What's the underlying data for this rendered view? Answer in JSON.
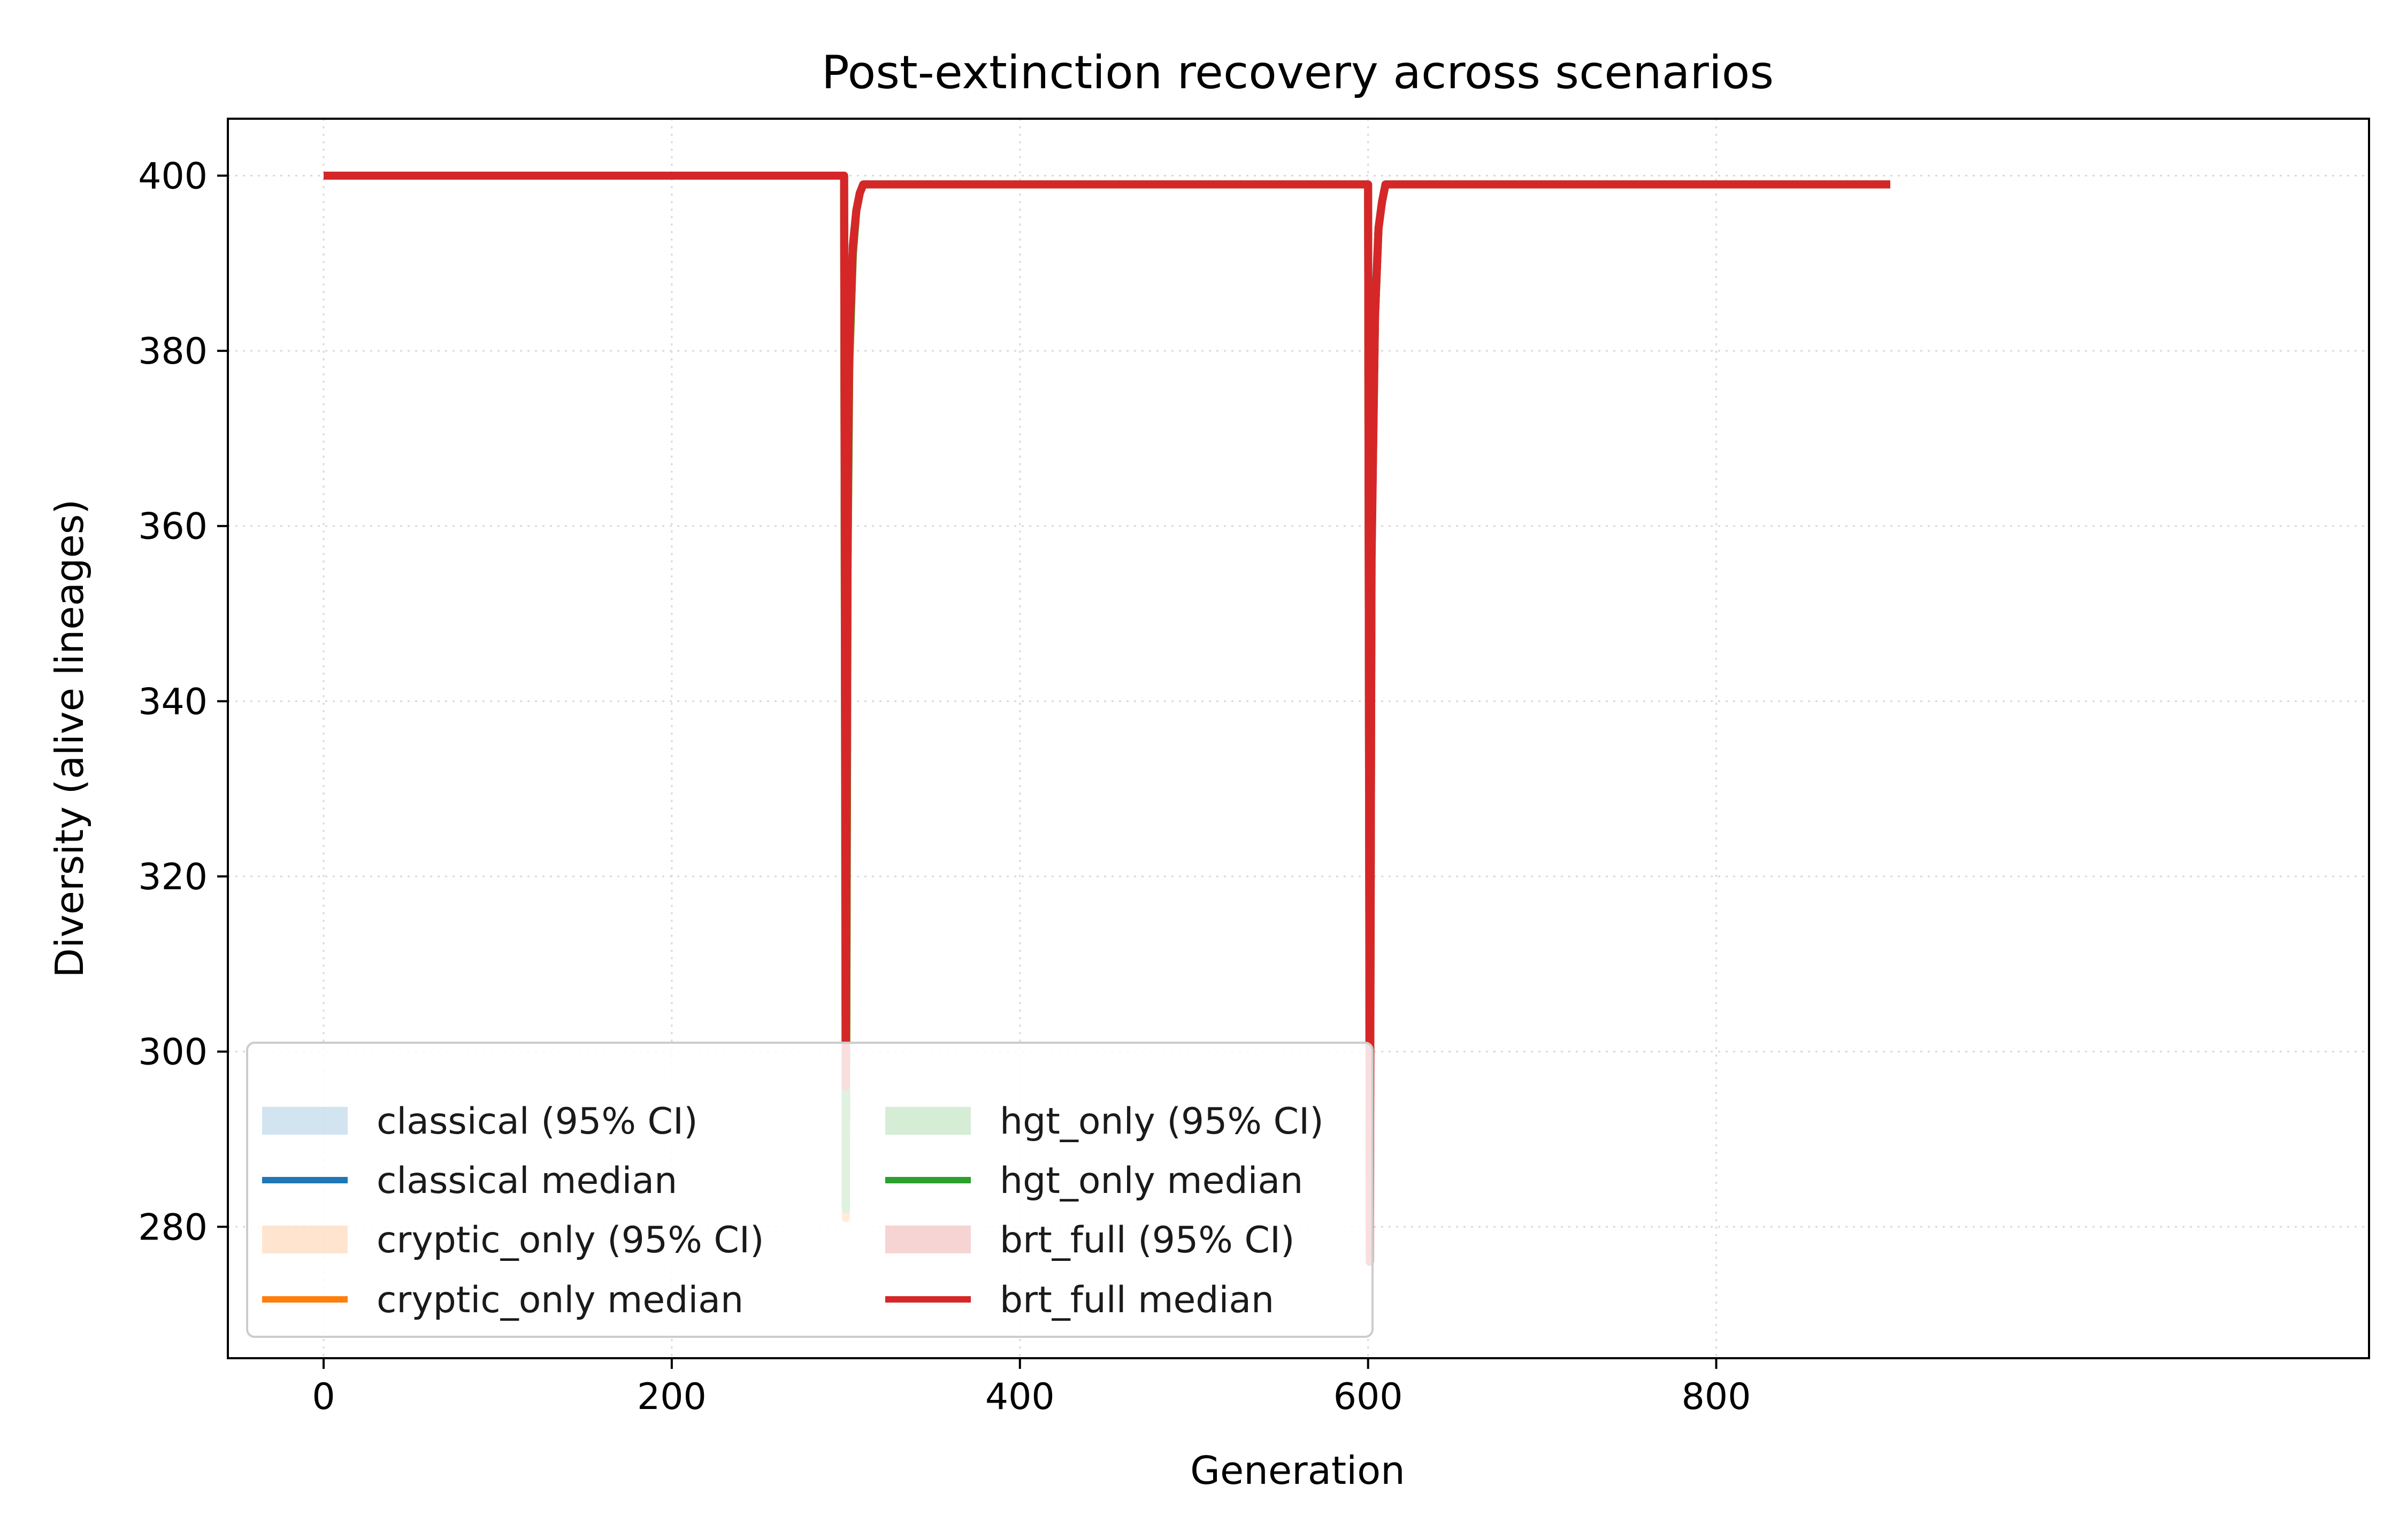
{
  "chart_data": {
    "type": "line",
    "title": "Post-extinction recovery across scenarios",
    "xlabel": "Generation",
    "ylabel": "Diversity (alive lineages)",
    "xlim": [
      -55,
      1175
    ],
    "ylim": [
      265,
      406.5
    ],
    "xticks": [
      0,
      200,
      400,
      600,
      800
    ],
    "yticks": [
      280,
      300,
      320,
      340,
      360,
      380,
      400
    ],
    "grid": true,
    "legend": {
      "placement": "lower-left",
      "columns": 2
    },
    "legend_entries": [
      {
        "label": "classical (95% CI)",
        "kind": "band",
        "color": "#1f77b4"
      },
      {
        "label": "classical median",
        "kind": "line",
        "color": "#1f77b4"
      },
      {
        "label": "cryptic_only (95% CI)",
        "kind": "band",
        "color": "#ff7f0e"
      },
      {
        "label": "cryptic_only median",
        "kind": "line",
        "color": "#ff7f0e"
      },
      {
        "label": "hgt_only (95% CI)",
        "kind": "band",
        "color": "#2ca02c"
      },
      {
        "label": "hgt_only median",
        "kind": "line",
        "color": "#2ca02c"
      },
      {
        "label": "brt_full (95% CI)",
        "kind": "band",
        "color": "#d62728"
      },
      {
        "label": "brt_full median",
        "kind": "line",
        "color": "#d62728"
      }
    ],
    "series": [
      {
        "name": "classical median",
        "color": "#1f77b4",
        "x": [
          0,
          299,
          300,
          301,
          302,
          304,
          306,
          308,
          310,
          600,
          601,
          602,
          604,
          606,
          608,
          610,
          900
        ],
        "y": [
          400,
          400,
          293,
          360,
          380,
          392,
          396,
          398,
          399,
          399,
          300,
          360,
          385,
          394,
          397,
          399,
          399
        ]
      },
      {
        "name": "cryptic_only median",
        "color": "#ff7f0e",
        "x": [
          0,
          299,
          300,
          301,
          302,
          304,
          306,
          308,
          310,
          600,
          601,
          602,
          604,
          606,
          608,
          610,
          900
        ],
        "y": [
          400,
          400,
          281,
          355,
          378,
          391,
          396,
          398,
          399,
          399,
          283,
          358,
          384,
          394,
          397,
          399,
          399
        ]
      },
      {
        "name": "hgt_only median",
        "color": "#2ca02c",
        "x": [
          0,
          299,
          300,
          301,
          302,
          304,
          306,
          308,
          310,
          600,
          601,
          602,
          604,
          606,
          608,
          610,
          900
        ],
        "y": [
          400,
          400,
          282,
          356,
          379,
          391,
          396,
          398,
          399,
          399,
          279,
          357,
          384,
          394,
          397,
          399,
          399
        ]
      },
      {
        "name": "brt_full median",
        "color": "#d62728",
        "x": [
          0,
          299,
          300,
          301,
          302,
          304,
          306,
          308,
          310,
          600,
          601,
          602,
          604,
          606,
          608,
          610,
          900
        ],
        "y": [
          400,
          400,
          296,
          362,
          381,
          392,
          396,
          398,
          399,
          399,
          276,
          356,
          384,
          394,
          397,
          399,
          399
        ]
      }
    ]
  }
}
